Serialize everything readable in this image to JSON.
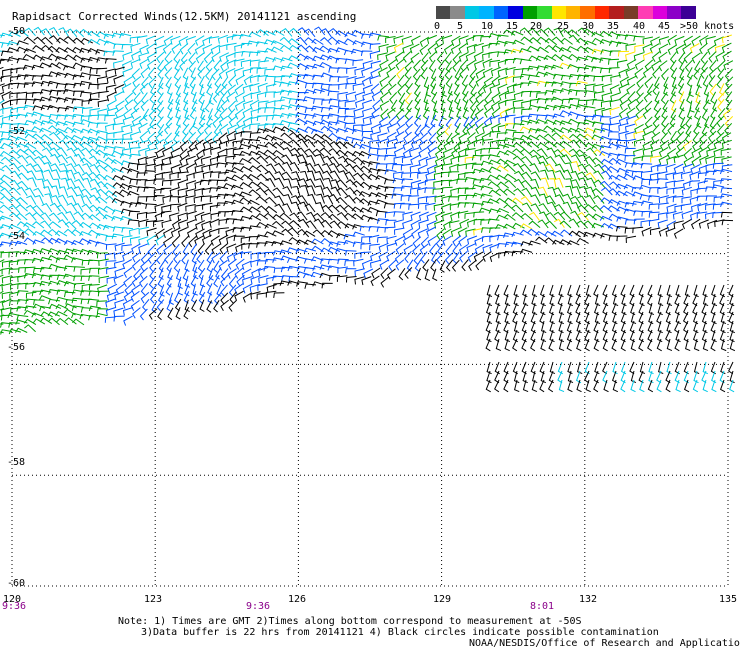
{
  "title": "Rapidsact Corrected Winds(12.5KM) 20141121 ascending",
  "legend": {
    "colors": [
      "#4a4a4a",
      "#8a8a8a",
      "#00c8e6",
      "#00b4ff",
      "#0064ff",
      "#0000e0",
      "#00a000",
      "#32dc32",
      "#ffe600",
      "#ffb400",
      "#ff6e00",
      "#ff2800",
      "#b41e1e",
      "#783c28",
      "#ff3cb4",
      "#dc00dc",
      "#8c00c8",
      "#3c0096"
    ],
    "labels": [
      "0",
      "5",
      "10",
      "15",
      "20",
      "25",
      "30",
      "35",
      "40",
      "45",
      ">50 knots"
    ]
  },
  "y_axis": {
    "ticks": [
      "-50",
      "-52",
      "-54",
      "-56",
      "-58",
      "-60"
    ]
  },
  "x_axis": {
    "ticks": [
      "120",
      "123",
      "126",
      "129",
      "132",
      "135"
    ]
  },
  "time_labels": [
    "9:36",
    "9:36",
    "8:01"
  ],
  "notes": [
    "Note: 1) Times are GMT 2)Times along bottom correspond to measurement at -50S",
    "3)Data buffer is 22 hrs from 20141121 4) Black circles indicate possible contamination",
    "NOAA/NESDIS/Office of Research and Applications"
  ],
  "map_data": {
    "lon_range": [
      120,
      135
    ],
    "lat_range": [
      -60,
      -50
    ],
    "color_ramp_knots": [
      0,
      5,
      10,
      15,
      20,
      25,
      30,
      35,
      40,
      45,
      50
    ],
    "wind_regions": [
      {
        "name": "calm-center",
        "speed_knots": 3,
        "color": "#000000"
      },
      {
        "name": "west-light",
        "speed_knots": 10,
        "color": "#00c8e6"
      },
      {
        "name": "central-moderate",
        "speed_knots": 14,
        "color": "#0050ff"
      },
      {
        "name": "northeast-strong",
        "speed_knots": 20,
        "color": "#00a000"
      },
      {
        "name": "northeast-highlights",
        "speed_knots": 25,
        "color": "#ffe600"
      },
      {
        "name": "southeast-swath-dark",
        "speed_knots": 4,
        "color": "#000000"
      },
      {
        "name": "southeast-swath-light",
        "speed_knots": 11,
        "color": "#00c8e6"
      },
      {
        "name": "southwest-green",
        "speed_knots": 20,
        "color": "#00a000"
      }
    ]
  }
}
